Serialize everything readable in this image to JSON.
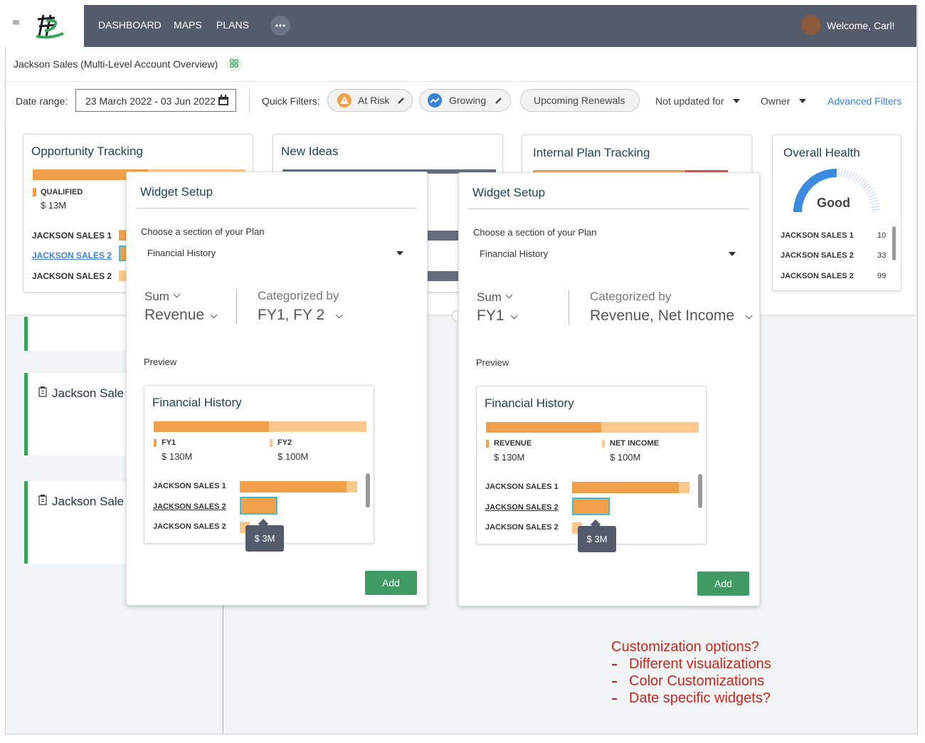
{
  "nav": {
    "items": [
      "DASHBOARD",
      "MAPS",
      "PLANS"
    ],
    "welcome": "Welcome, Carl!"
  },
  "header": {
    "title": "Jackson Sales (Multi-Level Account Overview)"
  },
  "filters": {
    "date_label": "Date range:",
    "date_value": "23 March 2022 - 03 Jun 2022",
    "quick_label": "Quick Filters:",
    "chips": [
      "At Risk",
      "Growing",
      "Upcoming Renewals"
    ],
    "dropdowns": [
      "Not updated for",
      "Owner"
    ],
    "advanced": "Advanced Filters"
  },
  "widgets": [
    {
      "title": "Opportunity Tracking",
      "legend": "QUALIFIED",
      "amount": "$ 13M",
      "rows": [
        "JACKSON SALES 1",
        "JACKSON SALES 2",
        "JACKSON SALES 2"
      ]
    },
    {
      "title": "New Ideas"
    },
    {
      "title": "Internal Plan Tracking"
    },
    {
      "title": "Overall Health",
      "gauge": "Good",
      "rows": [
        {
          "label": "JACKSON SALES 1",
          "value": 10
        },
        {
          "label": "JACKSON SALES 2",
          "value": 33
        },
        {
          "label": "JACKSON SALES 2",
          "value": 99
        }
      ]
    }
  ],
  "cards": [
    "Jackson Sale",
    "Jackson Sale"
  ],
  "setups": [
    {
      "title": "Widget Setup",
      "section_label": "Choose a section of your Plan",
      "section_value": "Financial History",
      "aggregate": "Sum",
      "aggregate_field": "Revenue",
      "category_label": "Categorized by",
      "category_value": "FY1, FY 2",
      "preview_label": "Preview",
      "preview": {
        "title": "Financial History",
        "legend": [
          {
            "name": "FY1",
            "amount": "$ 130M"
          },
          {
            "name": "FY2",
            "amount": "$ 100M"
          }
        ],
        "rows": [
          "JACKSON SALES 1",
          "JACKSON SALES 2",
          "JACKSON SALES 2"
        ],
        "tooltip": "$ 3M"
      },
      "button": "Add"
    },
    {
      "title": "Widget Setup",
      "section_label": "Choose a section of your Plan",
      "section_value": "Financial History",
      "aggregate": "Sum",
      "aggregate_field": "FY1",
      "category_label": "Categorized by",
      "category_value": "Revenue, Net Income",
      "preview_label": "Preview",
      "preview": {
        "title": "Financial History",
        "legend": [
          {
            "name": "REVENUE",
            "amount": "$ 130M"
          },
          {
            "name": "NET INCOME",
            "amount": "$ 100M"
          }
        ],
        "rows": [
          "JACKSON SALES 1",
          "JACKSON SALES 2",
          "JACKSON SALES 2"
        ],
        "tooltip": "$ 3M"
      },
      "button": "Add"
    }
  ],
  "notes": {
    "title": "Customization options?",
    "items": [
      "Different visualizations",
      "Color Customizations",
      "Date specific widgets?"
    ]
  }
}
